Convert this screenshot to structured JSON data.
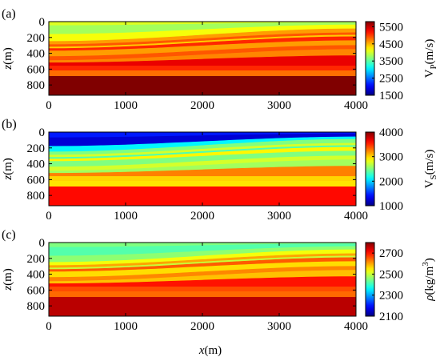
{
  "figure": {
    "xlabel_main": "x",
    "xlabel_unit": "(m)"
  },
  "chart_data": [
    {
      "type": "heatmap",
      "panel_label": "(a)",
      "ylabel_main": "z",
      "ylabel_unit": "(m)",
      "x_ticks": [
        0,
        1000,
        2000,
        3000,
        4000
      ],
      "y_ticks": [
        0,
        200,
        400,
        600,
        800
      ],
      "xlim": [
        0,
        4000
      ],
      "ylim": [
        0,
        930
      ],
      "colorbar": {
        "label_main": "V",
        "label_sub": "P",
        "label_unit": "(m/s)",
        "ticks": [
          1500,
          2500,
          3500,
          4500,
          5500
        ],
        "range": [
          1500,
          5800
        ]
      },
      "layers": [
        {
          "top_left": 0,
          "top_right": 0,
          "value": 4050
        },
        {
          "top_left": 50,
          "top_right": 10,
          "value": 3800
        },
        {
          "top_left": 160,
          "top_right": 40,
          "value": 4150
        },
        {
          "top_left": 250,
          "top_right": 90,
          "value": 4600
        },
        {
          "top_left": 290,
          "top_right": 140,
          "value": 4900
        },
        {
          "top_left": 320,
          "top_right": 170,
          "value": 4400
        },
        {
          "top_left": 340,
          "top_right": 190,
          "value": 5100
        },
        {
          "top_left": 370,
          "top_right": 240,
          "value": 4600
        },
        {
          "top_left": 440,
          "top_right": 300,
          "value": 4900
        },
        {
          "top_left": 490,
          "top_right": 350,
          "value": 4700
        },
        {
          "top_left": 520,
          "top_right": 430,
          "value": 5350
        },
        {
          "top_left": 560,
          "top_right": 560,
          "value": 5100
        },
        {
          "top_left": 620,
          "top_right": 620,
          "value": 4800
        },
        {
          "top_left": 690,
          "top_right": 690,
          "value": 5800
        }
      ]
    },
    {
      "type": "heatmap",
      "panel_label": "(b)",
      "ylabel_main": "z",
      "ylabel_unit": "(m)",
      "x_ticks": [
        0,
        1000,
        2000,
        3000,
        4000
      ],
      "y_ticks": [
        0,
        200,
        400,
        600,
        800
      ],
      "xlim": [
        0,
        4000
      ],
      "ylim": [
        0,
        930
      ],
      "colorbar": {
        "label_main": "V",
        "label_sub": "S",
        "label_unit": "(m/s)",
        "ticks": [
          1000,
          2000,
          3000,
          4000
        ],
        "range": [
          1000,
          4000
        ]
      },
      "layers": [
        {
          "top_left": 0,
          "top_right": 0,
          "value": 1450
        },
        {
          "top_left": 70,
          "top_right": 20,
          "value": 1250
        },
        {
          "top_left": 180,
          "top_right": 60,
          "value": 2100
        },
        {
          "top_left": 250,
          "top_right": 90,
          "value": 2500
        },
        {
          "top_left": 290,
          "top_right": 140,
          "value": 2750
        },
        {
          "top_left": 320,
          "top_right": 170,
          "value": 2350
        },
        {
          "top_left": 340,
          "top_right": 190,
          "value": 2900
        },
        {
          "top_left": 370,
          "top_right": 240,
          "value": 2500
        },
        {
          "top_left": 440,
          "top_right": 300,
          "value": 2750
        },
        {
          "top_left": 490,
          "top_right": 350,
          "value": 2600
        },
        {
          "top_left": 520,
          "top_right": 430,
          "value": 3250
        },
        {
          "top_left": 560,
          "top_right": 560,
          "value": 3000
        },
        {
          "top_left": 620,
          "top_right": 620,
          "value": 2950
        },
        {
          "top_left": 690,
          "top_right": 690,
          "value": 3600
        }
      ]
    },
    {
      "type": "heatmap",
      "panel_label": "(c)",
      "ylabel_main": "z",
      "ylabel_unit": "(m)",
      "x_ticks": [
        0,
        1000,
        2000,
        3000,
        4000
      ],
      "y_ticks": [
        0,
        200,
        400,
        600,
        800
      ],
      "xlim": [
        0,
        4000
      ],
      "ylim": [
        0,
        930
      ],
      "colorbar": {
        "label_main": "ρ(kg/m",
        "label_sup": "3",
        "label_tail": ")",
        "ticks": [
          2100,
          2300,
          2500,
          2700
        ],
        "range": [
          2100,
          2800
        ]
      },
      "layers": [
        {
          "top_left": 0,
          "top_right": 0,
          "value": 2450
        },
        {
          "top_left": 60,
          "top_right": 15,
          "value": 2420
        },
        {
          "top_left": 170,
          "top_right": 50,
          "value": 2460
        },
        {
          "top_left": 250,
          "top_right": 90,
          "value": 2530
        },
        {
          "top_left": 290,
          "top_right": 140,
          "value": 2600
        },
        {
          "top_left": 320,
          "top_right": 170,
          "value": 2500
        },
        {
          "top_left": 340,
          "top_right": 190,
          "value": 2650
        },
        {
          "top_left": 370,
          "top_right": 240,
          "value": 2560
        },
        {
          "top_left": 440,
          "top_right": 300,
          "value": 2620
        },
        {
          "top_left": 490,
          "top_right": 350,
          "value": 2580
        },
        {
          "top_left": 520,
          "top_right": 430,
          "value": 2700
        },
        {
          "top_left": 560,
          "top_right": 560,
          "value": 2660
        },
        {
          "top_left": 620,
          "top_right": 620,
          "value": 2640
        },
        {
          "top_left": 690,
          "top_right": 690,
          "value": 2760
        }
      ]
    }
  ]
}
